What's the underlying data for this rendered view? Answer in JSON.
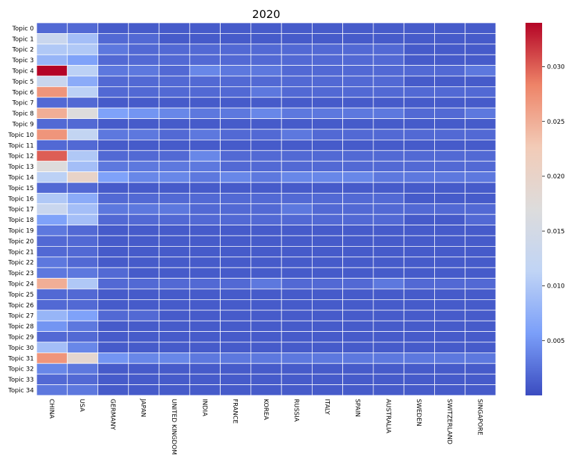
{
  "chart_data": {
    "type": "heatmap",
    "title": "2020",
    "xlabel": "",
    "ylabel": "",
    "columns": [
      "CHINA",
      "USA",
      "GERMANY",
      "JAPAN",
      "UNITED KINGDOM",
      "INDIA",
      "FRANCE",
      "KOREA",
      "RUSSIA",
      "ITALY",
      "SPAIN",
      "AUSTRALIA",
      "SWEDEN",
      "SWITZERLAND",
      "SINGAPORE"
    ],
    "rows": [
      "Topic 0",
      "Topic 1",
      "Topic 2",
      "Topic 3",
      "Topic 4",
      "Topic 5",
      "Topic 6",
      "Topic 7",
      "Topic 8",
      "Topic 9",
      "Topic 10",
      "Topic 11",
      "Topic 12",
      "Topic 13",
      "Topic 14",
      "Topic 15",
      "Topic 16",
      "Topic 17",
      "Topic 18",
      "Topic 19",
      "Topic 20",
      "Topic 21",
      "Topic 22",
      "Topic 23",
      "Topic 24",
      "Topic 25",
      "Topic 26",
      "Topic 27",
      "Topic 28",
      "Topic 29",
      "Topic 30",
      "Topic 31",
      "Topic 32",
      "Topic 33",
      "Topic 34"
    ],
    "values": [
      [
        0.002,
        0.002,
        0.001,
        0.001,
        0.001,
        0.001,
        0.001,
        0.001,
        0.001,
        0.001,
        0.001,
        0.001,
        0.001,
        0.001,
        0.001
      ],
      [
        0.013,
        0.009,
        0.002,
        0.002,
        0.001,
        0.001,
        0.001,
        0.001,
        0.001,
        0.001,
        0.001,
        0.001,
        0.001,
        0.001,
        0.001
      ],
      [
        0.01,
        0.01,
        0.003,
        0.002,
        0.002,
        0.002,
        0.002,
        0.002,
        0.002,
        0.002,
        0.002,
        0.002,
        0.001,
        0.001,
        0.001
      ],
      [
        0.008,
        0.006,
        0.002,
        0.002,
        0.002,
        0.002,
        0.002,
        0.002,
        0.002,
        0.002,
        0.002,
        0.002,
        0.001,
        0.001,
        0.001
      ],
      [
        0.034,
        0.011,
        0.003,
        0.003,
        0.002,
        0.004,
        0.003,
        0.003,
        0.002,
        0.002,
        0.002,
        0.002,
        0.002,
        0.002,
        0.003
      ],
      [
        0.013,
        0.007,
        0.002,
        0.002,
        0.002,
        0.002,
        0.002,
        0.002,
        0.002,
        0.002,
        0.002,
        0.002,
        0.001,
        0.001,
        0.001
      ],
      [
        0.027,
        0.011,
        0.002,
        0.002,
        0.002,
        0.002,
        0.002,
        0.003,
        0.002,
        0.002,
        0.002,
        0.002,
        0.002,
        0.002,
        0.002
      ],
      [
        0.002,
        0.002,
        0.001,
        0.001,
        0.001,
        0.001,
        0.001,
        0.001,
        0.001,
        0.001,
        0.001,
        0.001,
        0.001,
        0.001,
        0.001
      ],
      [
        0.025,
        0.017,
        0.006,
        0.005,
        0.004,
        0.003,
        0.003,
        0.004,
        0.003,
        0.003,
        0.003,
        0.003,
        0.002,
        0.002,
        0.003
      ],
      [
        0.002,
        0.002,
        0.001,
        0.001,
        0.001,
        0.001,
        0.001,
        0.001,
        0.001,
        0.001,
        0.001,
        0.001,
        0.001,
        0.001,
        0.001
      ],
      [
        0.027,
        0.012,
        0.003,
        0.003,
        0.002,
        0.003,
        0.002,
        0.002,
        0.003,
        0.002,
        0.002,
        0.002,
        0.002,
        0.002,
        0.002
      ],
      [
        0.002,
        0.002,
        0.001,
        0.001,
        0.001,
        0.001,
        0.001,
        0.001,
        0.001,
        0.001,
        0.001,
        0.001,
        0.001,
        0.001,
        0.001
      ],
      [
        0.03,
        0.01,
        0.002,
        0.002,
        0.002,
        0.004,
        0.002,
        0.002,
        0.002,
        0.002,
        0.002,
        0.002,
        0.002,
        0.002,
        0.002
      ],
      [
        0.017,
        0.009,
        0.003,
        0.003,
        0.003,
        0.003,
        0.002,
        0.002,
        0.002,
        0.002,
        0.002,
        0.002,
        0.002,
        0.002,
        0.002
      ],
      [
        0.011,
        0.02,
        0.006,
        0.004,
        0.004,
        0.003,
        0.004,
        0.003,
        0.004,
        0.004,
        0.004,
        0.003,
        0.003,
        0.003,
        0.003
      ],
      [
        0.002,
        0.002,
        0.001,
        0.001,
        0.001,
        0.001,
        0.001,
        0.001,
        0.001,
        0.001,
        0.001,
        0.001,
        0.001,
        0.001,
        0.001
      ],
      [
        0.01,
        0.007,
        0.002,
        0.002,
        0.002,
        0.002,
        0.002,
        0.002,
        0.002,
        0.002,
        0.002,
        0.002,
        0.001,
        0.001,
        0.001
      ],
      [
        0.013,
        0.009,
        0.003,
        0.003,
        0.003,
        0.002,
        0.002,
        0.002,
        0.003,
        0.002,
        0.002,
        0.002,
        0.002,
        0.002,
        0.002
      ],
      [
        0.006,
        0.009,
        0.002,
        0.002,
        0.002,
        0.002,
        0.002,
        0.002,
        0.002,
        0.002,
        0.002,
        0.002,
        0.001,
        0.001,
        0.002
      ],
      [
        0.003,
        0.002,
        0.001,
        0.001,
        0.001,
        0.001,
        0.001,
        0.001,
        0.001,
        0.001,
        0.001,
        0.001,
        0.001,
        0.001,
        0.001
      ],
      [
        0.002,
        0.002,
        0.001,
        0.001,
        0.001,
        0.001,
        0.001,
        0.001,
        0.001,
        0.001,
        0.001,
        0.001,
        0.001,
        0.001,
        0.001
      ],
      [
        0.002,
        0.002,
        0.001,
        0.001,
        0.001,
        0.001,
        0.001,
        0.001,
        0.001,
        0.001,
        0.001,
        0.001,
        0.001,
        0.001,
        0.001
      ],
      [
        0.003,
        0.002,
        0.001,
        0.001,
        0.001,
        0.001,
        0.001,
        0.001,
        0.001,
        0.001,
        0.001,
        0.001,
        0.001,
        0.001,
        0.001
      ],
      [
        0.003,
        0.003,
        0.002,
        0.001,
        0.001,
        0.001,
        0.001,
        0.001,
        0.001,
        0.001,
        0.001,
        0.001,
        0.001,
        0.001,
        0.001
      ],
      [
        0.025,
        0.01,
        0.002,
        0.002,
        0.002,
        0.002,
        0.002,
        0.003,
        0.002,
        0.002,
        0.002,
        0.003,
        0.002,
        0.002,
        0.002
      ],
      [
        0.002,
        0.002,
        0.001,
        0.001,
        0.001,
        0.001,
        0.001,
        0.001,
        0.001,
        0.001,
        0.001,
        0.001,
        0.001,
        0.001,
        0.001
      ],
      [
        0.002,
        0.002,
        0.001,
        0.001,
        0.001,
        0.001,
        0.001,
        0.001,
        0.001,
        0.001,
        0.001,
        0.001,
        0.001,
        0.001,
        0.001
      ],
      [
        0.008,
        0.006,
        0.002,
        0.002,
        0.001,
        0.001,
        0.001,
        0.001,
        0.001,
        0.001,
        0.001,
        0.001,
        0.001,
        0.001,
        0.001
      ],
      [
        0.005,
        0.003,
        0.001,
        0.001,
        0.001,
        0.001,
        0.001,
        0.001,
        0.001,
        0.001,
        0.001,
        0.001,
        0.001,
        0.001,
        0.001
      ],
      [
        0.002,
        0.002,
        0.001,
        0.001,
        0.001,
        0.001,
        0.001,
        0.001,
        0.001,
        0.001,
        0.001,
        0.001,
        0.001,
        0.001,
        0.001
      ],
      [
        0.009,
        0.004,
        0.001,
        0.001,
        0.001,
        0.001,
        0.001,
        0.001,
        0.001,
        0.001,
        0.001,
        0.001,
        0.001,
        0.001,
        0.001
      ],
      [
        0.027,
        0.019,
        0.005,
        0.004,
        0.004,
        0.003,
        0.003,
        0.003,
        0.003,
        0.003,
        0.003,
        0.003,
        0.003,
        0.003,
        0.003
      ],
      [
        0.004,
        0.003,
        0.001,
        0.001,
        0.001,
        0.001,
        0.001,
        0.001,
        0.001,
        0.001,
        0.001,
        0.001,
        0.001,
        0.001,
        0.001
      ],
      [
        0.002,
        0.002,
        0.001,
        0.001,
        0.001,
        0.001,
        0.001,
        0.001,
        0.001,
        0.001,
        0.001,
        0.001,
        0.001,
        0.001,
        0.001
      ],
      [
        0.003,
        0.003,
        0.001,
        0.001,
        0.001,
        0.001,
        0.001,
        0.001,
        0.001,
        0.001,
        0.001,
        0.001,
        0.001,
        0.001,
        0.001
      ]
    ],
    "colorbar": {
      "vmin": 0.0,
      "vmax": 0.034,
      "ticks": [
        0.005,
        0.01,
        0.015,
        0.02,
        0.025,
        0.03
      ],
      "tick_labels": [
        "0.005",
        "0.010",
        "0.015",
        "0.020",
        "0.025",
        "0.030"
      ],
      "colormap": "coolwarm",
      "colors": [
        "#3b4cc0",
        "#7b9ff9",
        "#c0d4f5",
        "#dddcdc",
        "#f2cbb7",
        "#ee8468",
        "#b40426"
      ]
    },
    "grid": true,
    "cell_border_color": "#ffffff"
  }
}
